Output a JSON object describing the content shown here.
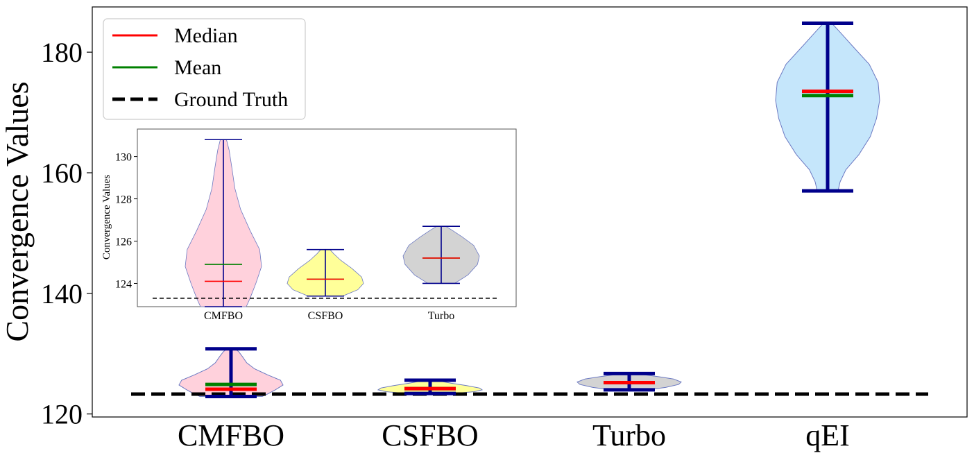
{
  "chart_data": {
    "type": "violin",
    "ylabel": "Convergence Values",
    "xlabel": "",
    "title": "",
    "ylim": [
      119.5,
      187.5
    ],
    "yticks": [
      120,
      140,
      160,
      180
    ],
    "ground_truth": 123.3,
    "legend": {
      "placement": "top-left",
      "entries": [
        {
          "label": "Median",
          "color": "#ff0000",
          "style": "solid"
        },
        {
          "label": "Mean",
          "color": "#008000",
          "style": "solid"
        },
        {
          "label": "Ground Truth",
          "color": "#000000",
          "style": "dashed"
        }
      ]
    },
    "series": [
      {
        "name": "CMFBO",
        "color": "#ffd1dc",
        "min": 122.9,
        "max": 130.8,
        "median": 124.1,
        "mean": 124.9,
        "density": [
          [
            122.9,
            0.6
          ],
          [
            123.3,
            0.7
          ],
          [
            124.0,
            0.85
          ],
          [
            124.8,
            1.0
          ],
          [
            125.6,
            0.95
          ],
          [
            126.5,
            0.7
          ],
          [
            127.5,
            0.45
          ],
          [
            128.5,
            0.3
          ],
          [
            129.5,
            0.22
          ],
          [
            130.3,
            0.15
          ],
          [
            130.8,
            0.08
          ]
        ]
      },
      {
        "name": "CSFBO",
        "color": "#ffff99",
        "min": 123.4,
        "max": 125.6,
        "median": 124.2,
        "mean": 124.2,
        "density": [
          [
            123.4,
            0.45
          ],
          [
            123.7,
            0.85
          ],
          [
            124.0,
            1.0
          ],
          [
            124.3,
            0.95
          ],
          [
            124.7,
            0.7
          ],
          [
            125.1,
            0.4
          ],
          [
            125.4,
            0.22
          ],
          [
            125.6,
            0.12
          ]
        ]
      },
      {
        "name": "Turbo",
        "color": "#d3d3d3",
        "min": 124.0,
        "max": 126.7,
        "median": 125.2,
        "mean": 125.2,
        "density": [
          [
            124.0,
            0.35
          ],
          [
            124.4,
            0.7
          ],
          [
            124.9,
            0.95
          ],
          [
            125.3,
            1.0
          ],
          [
            125.8,
            0.85
          ],
          [
            126.2,
            0.55
          ],
          [
            126.5,
            0.3
          ],
          [
            126.7,
            0.12
          ]
        ]
      },
      {
        "name": "qEI",
        "color": "#c5e6fb",
        "min": 157.0,
        "max": 184.8,
        "median": 173.5,
        "mean": 172.8,
        "density": [
          [
            157.0,
            0.2
          ],
          [
            158.5,
            0.24
          ],
          [
            160.5,
            0.35
          ],
          [
            163.0,
            0.6
          ],
          [
            166.0,
            0.82
          ],
          [
            169.0,
            0.94
          ],
          [
            172.0,
            1.0
          ],
          [
            175.0,
            0.97
          ],
          [
            178.0,
            0.8
          ],
          [
            181.0,
            0.48
          ],
          [
            183.5,
            0.22
          ],
          [
            184.8,
            0.08
          ]
        ]
      }
    ],
    "inset": {
      "ylabel": "Convergence Values",
      "ylim": [
        122.9,
        131.3
      ],
      "yticks": [
        124,
        126,
        128,
        130
      ],
      "categories": [
        "CMFBO",
        "CSFBO",
        "Turbo"
      ]
    }
  }
}
